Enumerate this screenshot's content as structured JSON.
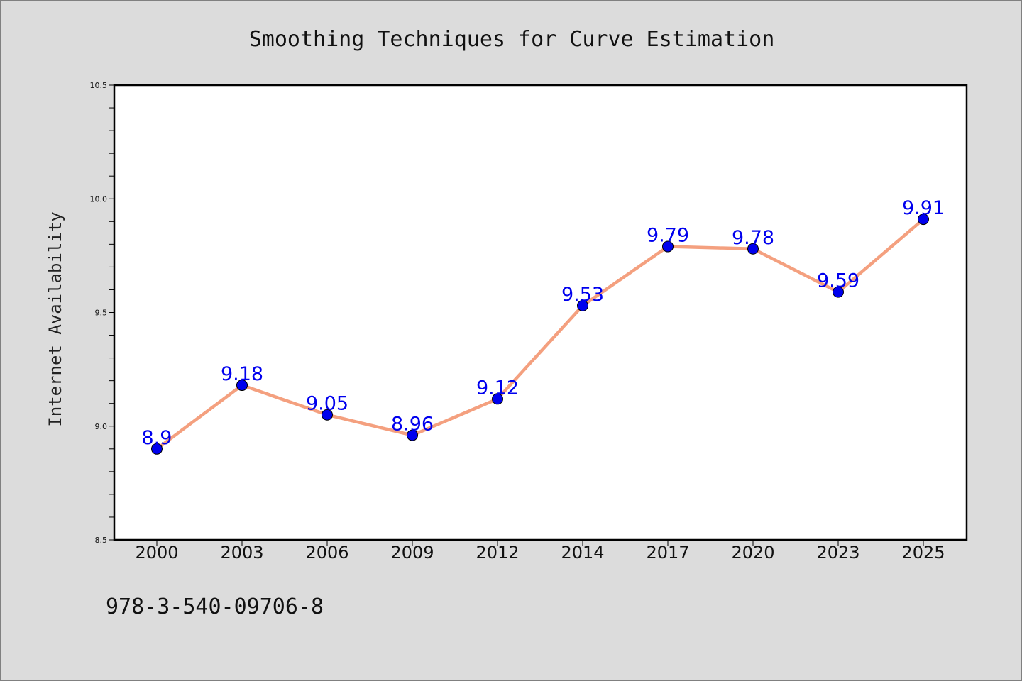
{
  "chart_data": {
    "type": "line",
    "title": "Smoothing Techniques for Curve Estimation",
    "xlabel": "",
    "ylabel": "Internet Availability",
    "categories": [
      "2000",
      "2003",
      "2006",
      "2009",
      "2012",
      "2014",
      "2017",
      "2020",
      "2023",
      "2025"
    ],
    "series": [
      {
        "values": [
          8.9,
          9.18,
          9.05,
          8.96,
          9.12,
          9.53,
          9.79,
          9.78,
          9.59,
          9.91
        ]
      }
    ],
    "data_labels": [
      "8.9",
      "9.18",
      "9.05",
      "8.96",
      "9.12",
      "9.53",
      "9.79",
      "9.78",
      "9.59",
      "9.91"
    ],
    "ylim": [
      8.5,
      10.5
    ],
    "yticks": [
      "8.5",
      "9.0",
      "9.5",
      "10.0",
      "10.5"
    ],
    "grid": false,
    "line_color": "#f4a07f",
    "marker_color": "#0000ee",
    "label_color": "#0000ee"
  },
  "footer": {
    "isbn": "978-3-540-09706-8"
  }
}
